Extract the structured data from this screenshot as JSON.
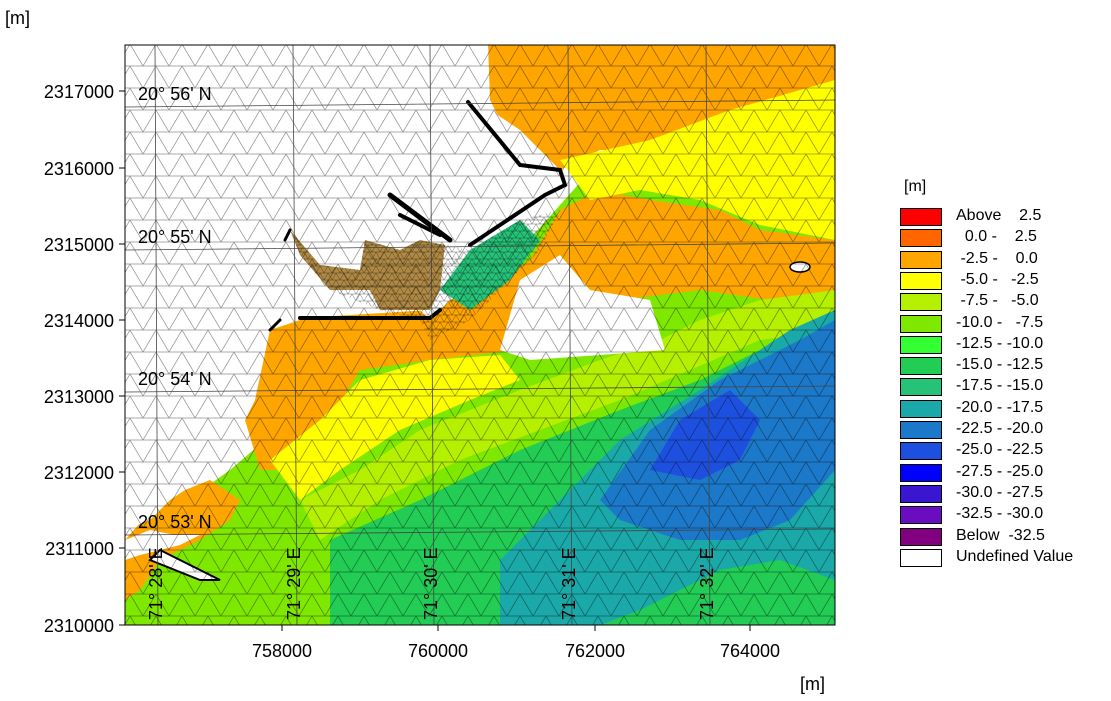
{
  "units": {
    "y_axis_unit": "[m]",
    "x_axis_unit": "[m]",
    "legend_unit": "[m]"
  },
  "axes": {
    "x_ticks": [
      "758000",
      "760000",
      "762000",
      "764000"
    ],
    "y_ticks": [
      "2310000",
      "2311000",
      "2312000",
      "2313000",
      "2314000",
      "2315000",
      "2316000",
      "2317000"
    ]
  },
  "graticule": {
    "lat_labels": [
      "20° 56' N",
      "20° 55' N",
      "20° 54' N",
      "20° 53' N"
    ],
    "lon_labels": [
      "71° 28' E",
      "71° 29' E",
      "71° 30' E",
      "71° 31' E",
      "71° 32' E"
    ]
  },
  "legend": {
    "items": [
      {
        "label": "Above    2.5",
        "color": "#ff0000"
      },
      {
        "label": "  0.0 -    2.5",
        "color": "#ff6600"
      },
      {
        "label": " -2.5 -    0.0",
        "color": "#ffa500"
      },
      {
        "label": " -5.0 -   -2.5",
        "color": "#ffff00"
      },
      {
        "label": " -7.5 -   -5.0",
        "color": "#b4f000"
      },
      {
        "label": "-10.0 -   -7.5",
        "color": "#7ee800"
      },
      {
        "label": "-12.5 - -10.0",
        "color": "#33ff33"
      },
      {
        "label": "-15.0 - -12.5",
        "color": "#22cc55"
      },
      {
        "label": "-17.5 - -15.0",
        "color": "#26c278"
      },
      {
        "label": "-20.0 - -17.5",
        "color": "#1aa8a8"
      },
      {
        "label": "-22.5 - -20.0",
        "color": "#1c78c8"
      },
      {
        "label": "-25.0 - -22.5",
        "color": "#1e50e0"
      },
      {
        "label": "-27.5 - -25.0",
        "color": "#0000ff"
      },
      {
        "label": "-30.0 - -27.5",
        "color": "#3b16d0"
      },
      {
        "label": "-32.5 - -30.0",
        "color": "#6a0cc0"
      },
      {
        "label": "Below  -32.5",
        "color": "#800080"
      },
      {
        "label": "Undefined Value",
        "color": "#ffffff"
      }
    ]
  }
}
